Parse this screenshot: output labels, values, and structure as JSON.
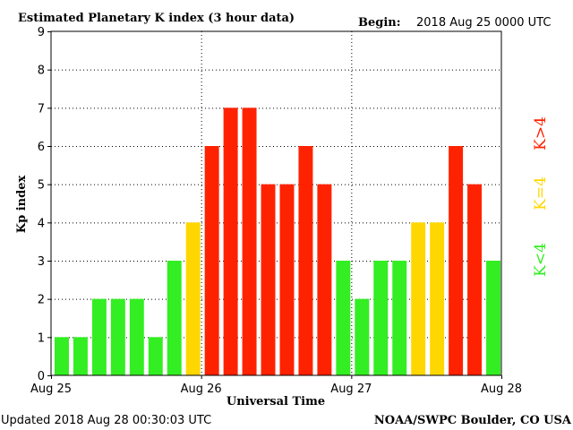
{
  "header": {
    "title": "Estimated Planetary K index (3 hour data)",
    "begin_label": "Begin:",
    "begin_value": "2018 Aug 25 0000 UTC"
  },
  "footer": {
    "updated": "Updated 2018 Aug 28 00:30:03 UTC",
    "source": "NOAA/SWPC Boulder, CO USA"
  },
  "legend": {
    "high": "K>4",
    "mid": "K=4",
    "low": "K<4"
  },
  "colors": {
    "low": "#33ee22",
    "mid": "#ffd700",
    "high": "#ff2200"
  },
  "chart_data": {
    "type": "bar",
    "title": "Estimated Planetary K index (3 hour data)",
    "xlabel": "Universal Time",
    "ylabel": "Kp index",
    "ylim": [
      0,
      9
    ],
    "yticks": [
      "0",
      "1",
      "2",
      "3",
      "4",
      "5",
      "6",
      "7",
      "8",
      "9"
    ],
    "xticks": [
      "Aug 25",
      "Aug 26",
      "Aug 27",
      "Aug 28"
    ],
    "grid": true,
    "values": [
      1,
      1,
      2,
      2,
      2,
      1,
      3,
      4,
      6,
      7,
      7,
      5,
      5,
      6,
      5,
      3,
      2,
      3,
      3,
      4,
      4,
      6,
      5,
      3
    ]
  }
}
